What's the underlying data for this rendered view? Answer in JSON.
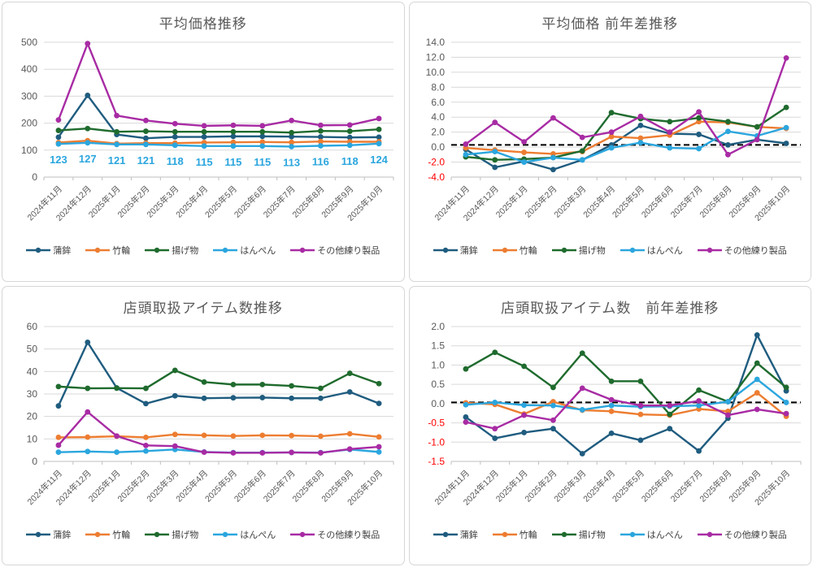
{
  "chart_data": {
    "type": "line",
    "categories": [
      "2024年11月",
      "2024年12月",
      "2025年1月",
      "2025年2月",
      "2025年3月",
      "2025年4月",
      "2025年5月",
      "2025年6月",
      "2025年7月",
      "2025年8月",
      "2025年9月",
      "2025年10月"
    ],
    "series_names": [
      "蒲鉾",
      "竹輪",
      "揚げ物",
      "はんぺん",
      "その他練り製品"
    ],
    "series_colors": [
      "#1F5C7F",
      "#ED7D31",
      "#1F6B2E",
      "#2BA6DE",
      "#A82BA4"
    ],
    "axis_colors": {
      "tick_label": "#595959",
      "negative_tick_label": "#FF0000",
      "gridline": "#D9D9D9",
      "axis_line": "#BFBFBF",
      "title": "#595959"
    },
    "charts": [
      {
        "title": "平均価格推移",
        "ylim": [
          0,
          500
        ],
        "ytick_step": 100,
        "ytick_decimals": 0,
        "ref_line": null,
        "series_values": [
          [
            148,
            303,
            158,
            144,
            149,
            149,
            151,
            151,
            150,
            149,
            147,
            148
          ],
          [
            128,
            135,
            124,
            126,
            126,
            128,
            129,
            130,
            129,
            132,
            131,
            131
          ],
          [
            173,
            180,
            168,
            170,
            168,
            168,
            168,
            168,
            165,
            171,
            170,
            177
          ],
          [
            123,
            127,
            121,
            121,
            118,
            115,
            115,
            115,
            113,
            116,
            118,
            124
          ],
          [
            212,
            495,
            228,
            210,
            198,
            190,
            192,
            190,
            210,
            192,
            193,
            217
          ]
        ],
        "data_labels": {
          "series_index": 3,
          "color": "#2BA6DE",
          "values": [
            "123",
            "127",
            "121",
            "121",
            "118",
            "115",
            "115",
            "115",
            "113",
            "116",
            "118",
            "124"
          ]
        }
      },
      {
        "title": "平均価格 前年差推移",
        "ylim": [
          -4,
          14
        ],
        "ytick_step": 2,
        "ytick_decimals": 1,
        "ref_line": 0.3,
        "series_values": [
          [
            -0.3,
            -2.7,
            -1.9,
            -3.0,
            -1.7,
            0.3,
            2.9,
            1.8,
            1.7,
            0.3,
            1.0,
            0.5
          ],
          [
            -0.1,
            -0.4,
            -0.7,
            -0.9,
            -0.6,
            1.4,
            1.2,
            1.6,
            3.4,
            3.3,
            2.7,
            2.5
          ],
          [
            -1.3,
            -1.7,
            -1.6,
            -1.4,
            -0.5,
            4.6,
            3.8,
            3.4,
            3.9,
            3.4,
            2.7,
            5.3
          ],
          [
            -1.0,
            -0.6,
            -2.0,
            -1.4,
            -1.7,
            -0.1,
            0.6,
            -0.1,
            -0.2,
            2.1,
            1.5,
            2.6
          ],
          [
            0.4,
            3.3,
            0.7,
            3.9,
            1.3,
            2.0,
            4.1,
            2.0,
            4.7,
            -1.0,
            1.0,
            11.9
          ]
        ],
        "data_labels": null
      },
      {
        "title": "店頭取扱アイテム数推移",
        "ylim": [
          0,
          60
        ],
        "ytick_step": 10,
        "ytick_decimals": 0,
        "ref_line": null,
        "series_values": [
          [
            24.7,
            53.0,
            32.7,
            25.7,
            29.2,
            28.1,
            28.3,
            28.4,
            28.1,
            28.1,
            30.9,
            25.8
          ],
          [
            10.7,
            10.8,
            11.2,
            10.7,
            12.0,
            11.6,
            11.3,
            11.6,
            11.5,
            11.2,
            12.3,
            10.9
          ],
          [
            33.3,
            32.5,
            32.6,
            32.5,
            40.5,
            35.3,
            34.2,
            34.2,
            33.6,
            32.5,
            39.2,
            34.6
          ],
          [
            4.1,
            4.4,
            4.1,
            4.6,
            5.3,
            4.2,
            3.9,
            3.9,
            4.0,
            3.9,
            5.3,
            4.2
          ],
          [
            7.2,
            22.0,
            11.3,
            7.1,
            6.8,
            4.1,
            3.8,
            3.8,
            4.0,
            3.8,
            5.5,
            6.5
          ]
        ],
        "data_labels": null
      },
      {
        "title": "店頭取扱アイテム数　前年差推移",
        "ylim": [
          -1.5,
          2.0
        ],
        "ytick_step": 0.5,
        "ytick_decimals": 1,
        "ref_line": 0.03,
        "series_values": [
          [
            -0.35,
            -0.9,
            -0.75,
            -0.65,
            -1.3,
            -0.77,
            -0.95,
            -0.65,
            -1.23,
            -0.38,
            1.78,
            0.33
          ],
          [
            0.02,
            -0.02,
            -0.27,
            0.05,
            -0.17,
            -0.2,
            -0.28,
            -0.3,
            -0.14,
            -0.2,
            0.28,
            -0.33
          ],
          [
            0.9,
            1.33,
            0.97,
            0.42,
            1.31,
            0.58,
            0.58,
            -0.28,
            0.35,
            0.05,
            1.05,
            0.42
          ],
          [
            -0.03,
            0.03,
            -0.04,
            -0.05,
            -0.16,
            -0.05,
            -0.08,
            -0.07,
            -0.05,
            0.05,
            0.63,
            0.03
          ],
          [
            -0.48,
            -0.65,
            -0.3,
            -0.43,
            0.4,
            0.1,
            -0.05,
            -0.05,
            0.07,
            -0.3,
            -0.15,
            -0.26
          ]
        ],
        "data_labels": null
      }
    ]
  }
}
